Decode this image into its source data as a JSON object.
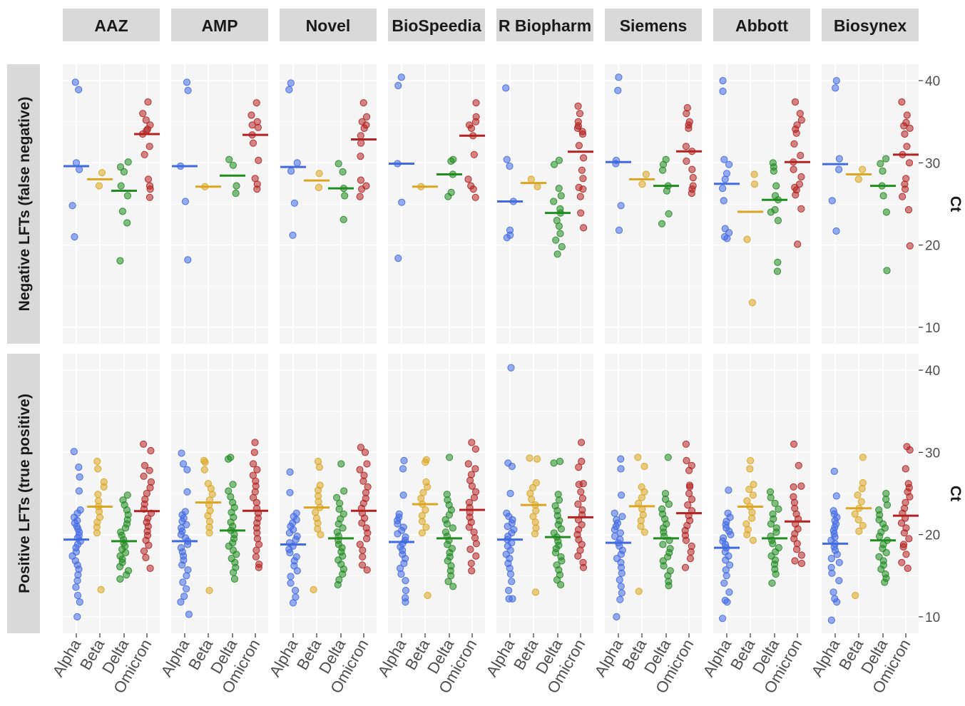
{
  "chart_data": {
    "type": "scatter",
    "columns": [
      "AAZ",
      "AMP",
      "Novel",
      "BioSpeedia",
      "R Biopharm",
      "Siemens",
      "Abbott",
      "Biosynex"
    ],
    "rows": [
      "Negative LFTs (false negative)",
      "Positive LFTs (true positive)"
    ],
    "categories": [
      "Alpha",
      "Beta",
      "Delta",
      "Omicron"
    ],
    "colors": {
      "Alpha": "#4169e1",
      "Beta": "#daa520",
      "Delta": "#228b22",
      "Omicron": "#b22222"
    },
    "ylabel": "Ct",
    "ylim": [
      8,
      42
    ],
    "yticks": [
      10,
      20,
      30,
      40
    ],
    "y_axis_position": "right",
    "grid": true,
    "marker": "circle-semitransparent",
    "median_marker": "horizontal-bar",
    "panels": {
      "Negative LFTs (false negative)": {
        "AAZ": {
          "Alpha": [
            39.8,
            38.9,
            30.0,
            29.2,
            24.8,
            21.0
          ],
          "Beta": [
            28.8,
            27.2
          ],
          "Delta": [
            30.1,
            29.5,
            28.9,
            27.2,
            26.0,
            24.1,
            22.7,
            18.1
          ],
          "Omicron": [
            37.4,
            36.0,
            35.2,
            34.6,
            34.1,
            33.9,
            33.5,
            32.0,
            31.0,
            28.0,
            27.2,
            26.8,
            25.8
          ]
        },
        "AMP": {
          "Alpha": [
            39.8,
            38.8,
            29.6,
            25.3,
            18.2
          ],
          "Beta": [
            27.1
          ],
          "Delta": [
            30.4,
            29.7,
            27.2,
            26.3
          ],
          "Omicron": [
            37.3,
            35.8,
            35.0,
            34.6,
            34.3,
            33.4,
            32.4,
            30.3,
            28.1,
            27.4,
            26.8
          ]
        },
        "Novel": {
          "Alpha": [
            39.7,
            38.9,
            30.0,
            29.0,
            25.1,
            21.2
          ],
          "Beta": [
            28.7,
            27.0
          ],
          "Delta": [
            29.9,
            28.9,
            26.9,
            26.0,
            23.1
          ],
          "Omicron": [
            37.3,
            35.6,
            35.0,
            34.6,
            34.2,
            33.3,
            32.4,
            30.8,
            27.9,
            27.2,
            26.8,
            25.9
          ]
        },
        "BioSpeedia": {
          "Alpha": [
            40.4,
            39.4,
            29.9,
            25.2,
            18.4
          ],
          "Beta": [
            27.1
          ],
          "Delta": [
            30.4,
            30.2,
            28.6,
            26.4,
            25.9
          ],
          "Omicron": [
            37.3,
            35.6,
            35.0,
            34.6,
            34.2,
            33.3,
            31.0,
            28.0,
            27.2,
            26.8,
            25.8
          ]
        },
        "R Biopharm": {
          "Alpha": [
            39.1,
            30.4,
            29.6,
            25.3,
            21.8,
            21.2,
            20.9
          ],
          "Beta": [
            28.0,
            27.1
          ],
          "Delta": [
            30.3,
            29.8,
            26.9,
            26.0,
            25.3,
            24.4,
            23.9,
            23.0,
            22.3,
            21.4,
            20.6,
            19.8,
            18.9
          ],
          "Omicron": [
            36.9,
            36.0,
            35.0,
            34.5,
            34.2,
            33.8,
            33.5,
            32.1,
            30.6,
            29.1,
            28.1,
            27.0,
            26.8,
            25.9,
            23.9,
            22.1
          ]
        },
        "Siemens": {
          "Alpha": [
            40.4,
            38.8,
            30.3,
            29.9,
            24.8,
            21.8
          ],
          "Beta": [
            28.6,
            27.4
          ],
          "Delta": [
            30.4,
            29.8,
            29.1,
            27.2,
            26.6,
            23.8,
            22.6
          ],
          "Omicron": [
            36.7,
            36.0,
            35.0,
            34.6,
            34.2,
            32.0,
            31.4,
            30.2,
            29.2,
            28.2,
            27.2,
            26.8,
            26.3
          ]
        },
        "Abbott": {
          "Alpha": [
            40.0,
            38.7,
            30.4,
            29.8,
            28.7,
            28.0,
            26.9,
            25.4,
            22.0,
            21.5,
            21.0,
            20.8
          ],
          "Beta": [
            28.6,
            27.4,
            20.7,
            13.0
          ],
          "Delta": [
            30.0,
            29.5,
            29.0,
            27.2,
            26.0,
            25.5,
            24.3,
            24.0,
            23.0,
            17.9,
            16.8
          ],
          "Omicron": [
            37.4,
            36.0,
            35.2,
            34.6,
            34.1,
            33.6,
            32.3,
            30.9,
            30.1,
            29.2,
            28.3,
            27.4,
            27.0,
            26.7,
            26.1,
            24.4,
            20.1
          ]
        },
        "Biosynex": {
          "Alpha": [
            40.0,
            39.1,
            30.5,
            29.2,
            25.4,
            21.7
          ],
          "Beta": [
            29.2,
            28.0
          ],
          "Delta": [
            30.5,
            29.9,
            29.0,
            27.2,
            26.0,
            24.0,
            16.9
          ],
          "Omicron": [
            37.4,
            35.8,
            34.9,
            34.5,
            34.2,
            33.5,
            32.0,
            31.0,
            30.0,
            28.1,
            27.4,
            26.8,
            25.9,
            24.3,
            19.9
          ]
        }
      },
      "Positive LFTs (true positive)": {
        "AAZ": {
          "Alpha": [
            30.1,
            28.2,
            27.0,
            25.3,
            23.0,
            22.6,
            22.1,
            21.7,
            21.4,
            21.0,
            20.7,
            20.3,
            19.9,
            19.6,
            19.2,
            18.8,
            18.4,
            17.9,
            17.4,
            16.8,
            16.3,
            15.8,
            15.1,
            14.4,
            13.6,
            12.6,
            11.8,
            10.0
          ],
          "Beta": [
            28.9,
            28.0,
            26.4,
            25.8,
            24.9,
            24.1,
            23.4,
            22.8,
            22.1,
            21.5,
            20.9,
            20.2,
            13.3
          ],
          "Delta": [
            24.8,
            24.2,
            23.6,
            23.0,
            22.4,
            21.8,
            21.3,
            20.8,
            20.3,
            19.9,
            19.4,
            19.0,
            18.6,
            18.2,
            17.8,
            17.4,
            17.0,
            16.6,
            16.1,
            15.6,
            15.1,
            14.6
          ],
          "Omicron": [
            31.0,
            30.2,
            28.4,
            27.8,
            27.1,
            26.4,
            25.7,
            25.0,
            24.3,
            23.7,
            23.1,
            22.6,
            22.0,
            21.5,
            21.0,
            20.4,
            19.9,
            19.3,
            18.7,
            18.0,
            17.2,
            15.9
          ]
        },
        "AMP": {
          "Alpha": [
            29.9,
            28.6,
            27.9,
            25.2,
            22.8,
            22.4,
            22.0,
            21.6,
            21.2,
            20.8,
            20.4,
            20.0,
            19.6,
            19.2,
            18.8,
            18.4,
            17.9,
            17.4,
            16.9,
            16.3,
            15.7,
            15.0,
            14.2,
            13.4,
            12.5,
            11.8,
            10.3
          ],
          "Beta": [
            29.0,
            28.8,
            27.9,
            26.2,
            25.6,
            24.9,
            24.2,
            23.6,
            22.9,
            22.3,
            21.6,
            20.9,
            20.2,
            13.2
          ],
          "Delta": [
            29.4,
            29.2,
            26.1,
            25.3,
            24.6,
            23.9,
            23.3,
            22.7,
            22.1,
            21.5,
            21.0,
            20.5,
            20.0,
            19.5,
            19.0,
            18.6,
            18.1,
            17.6,
            17.1,
            16.6,
            16.0,
            15.4,
            14.6
          ],
          "Omicron": [
            31.2,
            30.0,
            28.6,
            27.9,
            27.2,
            26.5,
            25.9,
            25.2,
            24.5,
            23.9,
            23.2,
            22.6,
            22.0,
            21.4,
            20.8,
            20.2,
            19.5,
            18.8,
            18.1,
            17.3,
            16.4,
            16.0
          ]
        },
        "Novel": {
          "Alpha": [
            27.6,
            25.1,
            22.6,
            22.2,
            21.8,
            21.4,
            21.0,
            20.6,
            20.2,
            19.8,
            19.4,
            19.0,
            18.6,
            18.2,
            17.8,
            17.3,
            16.8,
            16.2,
            15.6,
            14.9,
            14.1,
            13.2,
            12.4,
            11.7
          ],
          "Beta": [
            28.9,
            28.2,
            26.0,
            25.4,
            24.7,
            24.0,
            23.3,
            22.7,
            22.0,
            21.4,
            20.7,
            20.0,
            13.3
          ],
          "Delta": [
            28.6,
            25.3,
            24.5,
            23.8,
            23.1,
            22.5,
            21.9,
            21.3,
            20.8,
            20.3,
            19.8,
            19.3,
            18.8,
            18.4,
            17.9,
            17.4,
            16.9,
            16.4,
            15.8,
            15.2,
            14.5,
            13.9
          ],
          "Omicron": [
            30.6,
            30.0,
            28.6,
            27.9,
            27.2,
            26.5,
            25.8,
            25.1,
            24.4,
            23.8,
            23.2,
            22.6,
            22.0,
            21.4,
            20.8,
            20.2,
            19.5,
            18.8,
            18.1,
            17.3,
            16.3,
            15.7
          ]
        },
        "BioSpeedia": {
          "Alpha": [
            29.0,
            28.0,
            24.8,
            22.5,
            22.1,
            21.7,
            21.3,
            20.9,
            20.5,
            20.1,
            19.7,
            19.3,
            18.9,
            18.5,
            18.1,
            17.6,
            17.1,
            16.5,
            15.9,
            15.2,
            14.4,
            13.2,
            12.3,
            11.8
          ],
          "Beta": [
            29.1,
            28.8,
            26.4,
            25.8,
            25.1,
            24.4,
            23.7,
            23.0,
            22.3,
            21.6,
            20.9,
            20.2,
            12.6
          ],
          "Delta": [
            29.4,
            24.9,
            24.2,
            23.6,
            23.0,
            22.4,
            21.8,
            21.3,
            20.8,
            20.3,
            19.8,
            19.3,
            18.8,
            18.3,
            17.8,
            17.3,
            16.8,
            16.2,
            15.6,
            15.0,
            14.3,
            13.7
          ],
          "Omicron": [
            31.2,
            30.4,
            28.6,
            28.0,
            27.3,
            26.6,
            25.9,
            25.2,
            24.5,
            23.9,
            23.3,
            22.7,
            22.1,
            21.5,
            20.9,
            20.3,
            19.6,
            18.9,
            18.2,
            17.4,
            16.5,
            15.6
          ]
        },
        "R Biopharm": {
          "Alpha": [
            40.3,
            28.7,
            28.3,
            25.0,
            22.6,
            22.2,
            21.8,
            21.4,
            21.0,
            20.6,
            20.2,
            19.8,
            19.4,
            19.0,
            18.6,
            18.1,
            17.6,
            17.1,
            16.5,
            15.9,
            15.2,
            14.3,
            13.2,
            12.2,
            12.2
          ],
          "Beta": [
            29.3,
            29.2,
            26.3,
            25.7,
            25.0,
            24.3,
            23.6,
            22.9,
            22.2,
            21.5,
            20.8,
            20.1,
            13.0
          ],
          "Delta": [
            28.9,
            28.7,
            24.9,
            24.2,
            23.5,
            22.9,
            22.3,
            21.7,
            21.2,
            20.7,
            20.2,
            19.7,
            19.2,
            18.7,
            18.3,
            17.8,
            17.3,
            16.8,
            16.3,
            15.7,
            15.1,
            14.5,
            13.9
          ],
          "Omicron": [
            31.2,
            28.9,
            28.2,
            26.2,
            26.1,
            25.2,
            24.4,
            23.7,
            23.0,
            22.4,
            21.8,
            21.2,
            20.6,
            20.0,
            19.4,
            18.8,
            18.1,
            17.4,
            16.6,
            16.0
          ]
        },
        "Siemens": {
          "Alpha": [
            29.2,
            28.0,
            24.8,
            22.6,
            22.2,
            21.8,
            21.4,
            21.0,
            20.6,
            20.2,
            19.8,
            19.4,
            19.0,
            18.6,
            18.1,
            17.6,
            17.1,
            16.6,
            16.0,
            15.3,
            14.5,
            13.7,
            12.9,
            12.1,
            10.0
          ],
          "Beta": [
            29.4,
            28.3,
            25.8,
            25.2,
            24.5,
            23.8,
            23.1,
            22.4,
            21.7,
            21.0,
            20.3,
            13.1
          ],
          "Delta": [
            29.4,
            25.0,
            24.3,
            23.7,
            23.1,
            22.5,
            21.9,
            21.3,
            20.8,
            20.3,
            19.8,
            19.3,
            18.8,
            18.3,
            17.8,
            17.3,
            16.8,
            16.2,
            15.6,
            15.0,
            14.3,
            13.8
          ],
          "Omicron": [
            31.0,
            29.0,
            28.4,
            27.8,
            26.0,
            25.8,
            25.0,
            24.3,
            23.6,
            22.9,
            22.3,
            21.7,
            21.1,
            20.5,
            19.9,
            19.3,
            18.6,
            17.9,
            17.1,
            16.0
          ]
        },
        "Abbott": {
          "Alpha": [
            25.4,
            22.6,
            22.1,
            21.6,
            21.2,
            20.8,
            20.4,
            20.0,
            19.6,
            19.2,
            18.8,
            18.4,
            17.9,
            17.4,
            16.9,
            16.3,
            15.7,
            15.0,
            14.1,
            13.0,
            12.0,
            11.8,
            9.8
          ],
          "Beta": [
            29.0,
            28.0,
            26.1,
            25.5,
            24.8,
            24.1,
            23.4,
            22.7,
            22.0,
            21.3,
            20.6,
            20.0,
            19.3
          ],
          "Delta": [
            25.2,
            24.5,
            23.8,
            23.1,
            22.5,
            21.9,
            21.3,
            20.8,
            20.3,
            19.8,
            19.3,
            18.9,
            18.4,
            17.9,
            17.4,
            16.9,
            16.4,
            15.8,
            15.2,
            14.1
          ],
          "Omicron": [
            31.0,
            28.4,
            25.9,
            25.8,
            24.6,
            23.9,
            23.2,
            22.5,
            21.9,
            21.3,
            20.7,
            20.1,
            19.5,
            18.9,
            18.2,
            17.5,
            16.8,
            16.5
          ]
        },
        "Biosynex": {
          "Alpha": [
            27.7,
            24.7,
            22.9,
            22.5,
            22.1,
            21.7,
            21.3,
            20.9,
            20.5,
            20.1,
            19.7,
            19.3,
            18.9,
            18.5,
            18.1,
            17.6,
            17.1,
            16.6,
            16.0,
            15.3,
            14.4,
            13.0,
            12.2,
            11.8,
            9.6
          ],
          "Beta": [
            29.4,
            26.3,
            25.6,
            24.8,
            24.0,
            23.2,
            22.5,
            21.8,
            21.1,
            20.4,
            12.6
          ],
          "Delta": [
            25.0,
            24.3,
            23.6,
            23.0,
            22.4,
            21.8,
            21.3,
            20.8,
            20.3,
            19.8,
            19.3,
            18.8,
            18.3,
            17.8,
            17.3,
            16.8,
            16.3,
            15.8,
            15.2,
            14.7,
            14.2
          ],
          "Omicron": [
            30.7,
            30.3,
            28.0,
            26.2,
            25.7,
            25.2,
            24.6,
            23.9,
            23.2,
            22.6,
            22.0,
            21.4,
            20.8,
            20.2,
            19.5,
            18.8,
            18.5,
            17.6,
            16.6,
            15.9
          ]
        }
      }
    }
  }
}
